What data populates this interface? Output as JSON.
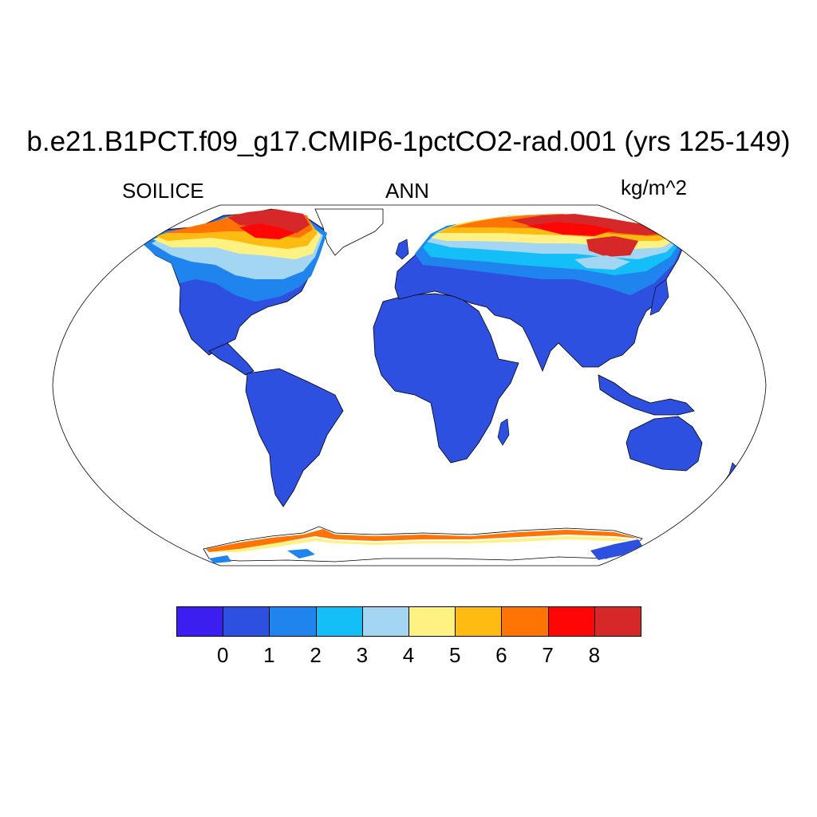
{
  "title": "b.e21.B1PCT.f09_g17.CMIP6-1pctCO2-rad.001 (yrs 125-149)",
  "left_label": "SOILICE",
  "center_label": "ANN",
  "right_label": "kg/m^2",
  "colorbar": {
    "colors": [
      "#3d1ef0",
      "#2d50e0",
      "#2084ee",
      "#14bef6",
      "#a3d6f2",
      "#fff282",
      "#ffbb12",
      "#ff7404",
      "#ff0606",
      "#d62828"
    ],
    "labels": [
      "0",
      "1",
      "2",
      "3",
      "4",
      "5",
      "6",
      "7",
      "8"
    ]
  },
  "map": {
    "projection": "robinson",
    "land_color": "#2d50e0",
    "ocean_color": "#ffffff"
  }
}
